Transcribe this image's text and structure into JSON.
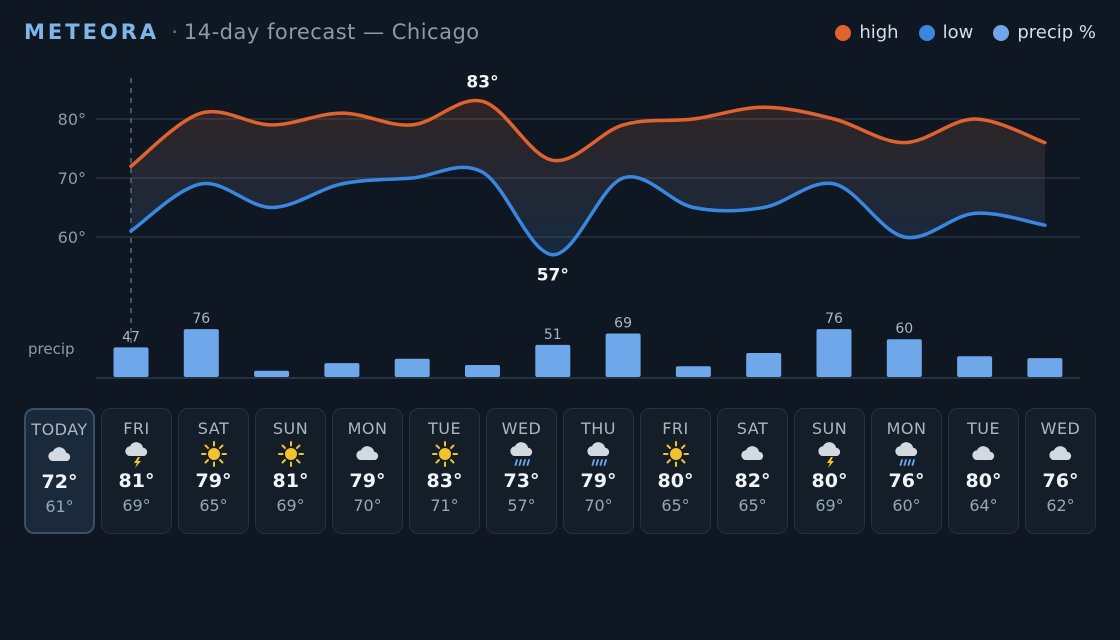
{
  "header": {
    "brand": "METEORA",
    "separator": "·",
    "subtitle": "14-day forecast — Chicago"
  },
  "legend": [
    {
      "label": "high",
      "color": "#e0622e"
    },
    {
      "label": "low",
      "color": "#3a87e0"
    },
    {
      "label": "precip %",
      "color": "#6ea8ea"
    }
  ],
  "chart_data": {
    "type": "line",
    "y_tick_labels": [
      "80°",
      "70°",
      "60°"
    ],
    "y_ticks": [
      80,
      70,
      60
    ],
    "ylim": [
      53,
      86
    ],
    "series": [
      {
        "name": "high",
        "color": "#e0622e",
        "values": [
          72,
          81,
          79,
          81,
          79,
          83,
          73,
          79,
          80,
          82,
          80,
          76,
          80,
          76
        ]
      },
      {
        "name": "low",
        "color": "#3a87e0",
        "values": [
          61,
          69,
          65,
          69,
          70,
          71,
          57,
          70,
          65,
          65,
          69,
          60,
          64,
          62
        ]
      }
    ],
    "annotations": [
      {
        "label": "83°",
        "series": "high",
        "index": 5,
        "position": "above"
      },
      {
        "label": "57°",
        "series": "low",
        "index": 6,
        "position": "below"
      }
    ],
    "grid": true,
    "precip": {
      "type": "bar",
      "label": "precip",
      "color": "#6ea8ea",
      "values": [
        47,
        76,
        10,
        22,
        29,
        19,
        51,
        69,
        17,
        38,
        76,
        60,
        33,
        30
      ],
      "labeled_values": [
        "47",
        "76",
        null,
        null,
        null,
        null,
        "51",
        "69",
        null,
        null,
        "76",
        "60",
        null,
        null
      ]
    }
  },
  "days": [
    {
      "day": "TODAY",
      "icon": "cloud-icon",
      "high": "72°",
      "low": "61°"
    },
    {
      "day": "FRI",
      "icon": "thunderstorm-icon",
      "high": "81°",
      "low": "69°"
    },
    {
      "day": "SAT",
      "icon": "sun-icon",
      "high": "79°",
      "low": "65°"
    },
    {
      "day": "SUN",
      "icon": "sun-icon",
      "high": "81°",
      "low": "69°"
    },
    {
      "day": "MON",
      "icon": "cloud-icon",
      "high": "79°",
      "low": "70°"
    },
    {
      "day": "TUE",
      "icon": "sun-icon",
      "high": "83°",
      "low": "71°"
    },
    {
      "day": "WED",
      "icon": "rain-icon",
      "high": "73°",
      "low": "57°"
    },
    {
      "day": "THU",
      "icon": "rain-icon",
      "high": "79°",
      "low": "70°"
    },
    {
      "day": "FRI",
      "icon": "sun-icon",
      "high": "80°",
      "low": "65°"
    },
    {
      "day": "SAT",
      "icon": "cloud-icon",
      "high": "82°",
      "low": "65°"
    },
    {
      "day": "SUN",
      "icon": "thunderstorm-icon",
      "high": "80°",
      "low": "69°"
    },
    {
      "day": "MON",
      "icon": "rain-icon",
      "high": "76°",
      "low": "60°"
    },
    {
      "day": "TUE",
      "icon": "cloud-icon",
      "high": "80°",
      "low": "64°"
    },
    {
      "day": "WED",
      "icon": "cloud-icon",
      "high": "76°",
      "low": "62°"
    }
  ]
}
